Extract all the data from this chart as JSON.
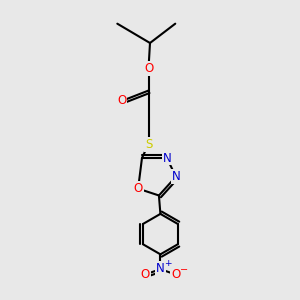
{
  "background_color": "#e8e8e8",
  "bond_color": "#000000",
  "bond_width": 1.5,
  "atom_colors": {
    "O": "#ff0000",
    "N": "#0000cc",
    "S": "#cccc00",
    "C": "#000000",
    "NO2_N": "#0000cc",
    "NO2_O": "#ff0000"
  },
  "font_size_atoms": 8.5,
  "fig_width": 3.0,
  "fig_height": 3.0,
  "dpi": 100
}
